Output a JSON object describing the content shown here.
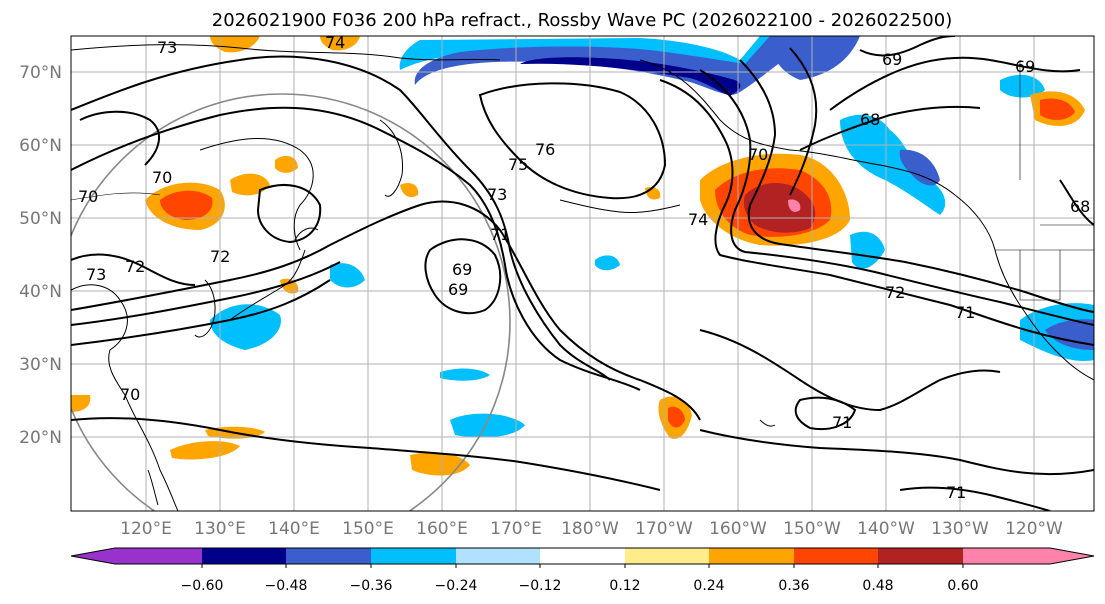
{
  "figure": {
    "title": "2026021900 F036 200 hPa refract., Rossby Wave PC (2026022100 - 2026022500)"
  },
  "map": {
    "lat_labels": [
      "70°N",
      "60°N",
      "50°N",
      "40°N",
      "30°N",
      "20°N"
    ],
    "lon_labels": [
      "120°E",
      "130°E",
      "140°E",
      "150°E",
      "160°E",
      "170°E",
      "180°W",
      "170°W",
      "160°W",
      "150°W",
      "140°W",
      "130°W",
      "120°W"
    ],
    "contour_labels": [
      "73",
      "70",
      "70",
      "72",
      "72",
      "73",
      "74",
      "69",
      "69",
      "68",
      "70",
      "75",
      "76",
      "73",
      "71",
      "69",
      "74",
      "72",
      "71",
      "71",
      "71",
      "68",
      "69",
      "70"
    ]
  },
  "colorbar": {
    "tick_labels": [
      "−0.60",
      "−0.48",
      "−0.36",
      "−0.24",
      "−0.12",
      "0.12",
      "0.24",
      "0.36",
      "0.48",
      "0.60"
    ],
    "colors": [
      "#9932cc",
      "#00008b",
      "#3a5fcd",
      "#00bfff",
      "#b0e2ff",
      "#ffffff",
      "#ffec8b",
      "#ffa500",
      "#ff4500",
      "#b22222",
      "#ff82ab"
    ]
  },
  "icons": [
    "range-circle-icon"
  ]
}
